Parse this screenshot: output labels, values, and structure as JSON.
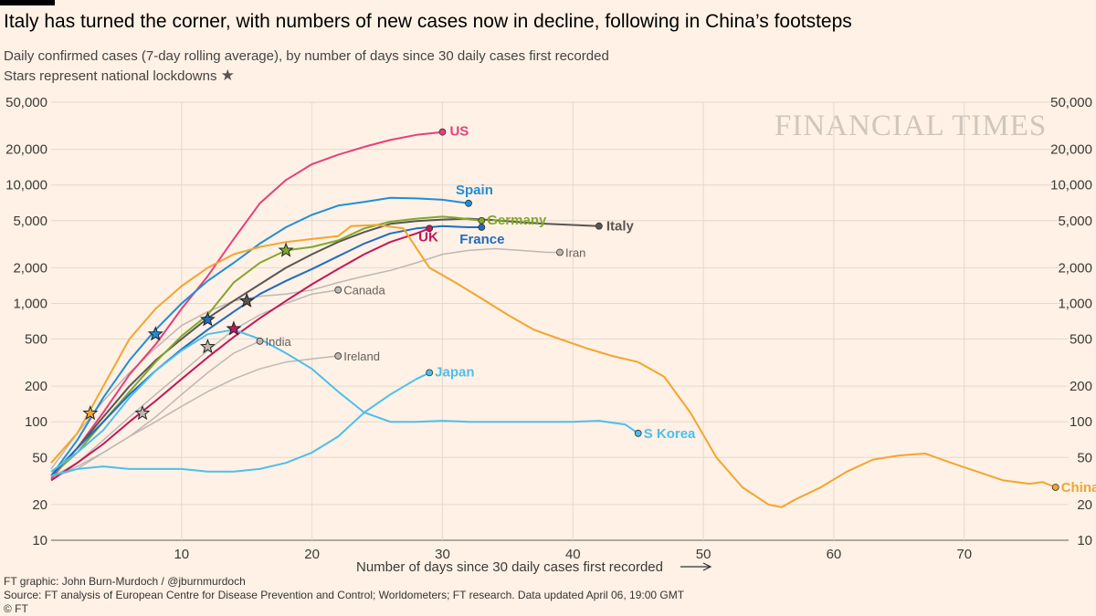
{
  "title": "Italy has turned the corner, with numbers of new cases now in decline, following in China’s footsteps",
  "subtitle": "Daily confirmed cases (7-day rolling average), by number of days since 30 daily cases first recorded",
  "subtitle2": "Stars represent national lockdowns",
  "star_glyph": "★",
  "watermark": "FINANCIAL TIMES",
  "footer": {
    "credit": "FT graphic: John Burn-Murdoch / @jburnmurdoch",
    "source": "Source: FT analysis of European Centre for Disease Prevention and Control; Worldometers; FT research. Data updated April 06, 19:00 GMT",
    "copyright": "© FT"
  },
  "chart_data": {
    "type": "line",
    "y_scale": "log",
    "title": "Italy has turned the corner, with numbers of new cases now in decline, following in China’s footsteps",
    "xlabel": "Number of days since 30 daily cases first recorded",
    "ylabel": "Daily confirmed cases (7-day rolling average)",
    "xlim": [
      0,
      78
    ],
    "ylim": [
      10,
      50000
    ],
    "x_ticks": [
      10,
      20,
      30,
      40,
      50,
      60,
      70
    ],
    "y_ticks": [
      10,
      20,
      50,
      100,
      200,
      500,
      1000,
      2000,
      5000,
      10000,
      20000,
      50000
    ],
    "y_tick_labels": [
      "10",
      "20",
      "50",
      "100",
      "200",
      "500",
      "1,000",
      "2,000",
      "5,000",
      "10,000",
      "20,000",
      "50,000"
    ],
    "series": [
      {
        "name": "US",
        "label": "US",
        "color": "#e5407a",
        "highlight": true,
        "x": [
          0,
          2,
          4,
          6,
          8,
          10,
          12,
          14,
          16,
          18,
          20,
          22,
          24,
          26,
          28,
          30
        ],
        "y": [
          33,
          60,
          120,
          250,
          450,
          900,
          1700,
          3500,
          7000,
          11000,
          15000,
          18000,
          21000,
          24000,
          26500,
          28000
        ]
      },
      {
        "name": "Spain",
        "label": "Spain",
        "color": "#1f8ed8",
        "highlight": true,
        "x": [
          0,
          2,
          4,
          6,
          8,
          10,
          12,
          14,
          16,
          18,
          20,
          22,
          24,
          26,
          28,
          30,
          32
        ],
        "y": [
          35,
          70,
          160,
          330,
          600,
          1000,
          1550,
          2200,
          3200,
          4400,
          5600,
          6700,
          7200,
          7800,
          7700,
          7500,
          7000
        ]
      },
      {
        "name": "Italy",
        "label": "Italy",
        "color": "#5a5553",
        "highlight": true,
        "x": [
          0,
          2,
          4,
          6,
          8,
          10,
          12,
          14,
          16,
          18,
          20,
          22,
          24,
          26,
          28,
          30,
          32,
          34,
          36,
          38,
          40,
          42
        ],
        "y": [
          35,
          60,
          110,
          200,
          330,
          500,
          750,
          1050,
          1450,
          2000,
          2600,
          3300,
          4000,
          4700,
          4950,
          5100,
          5200,
          5050,
          4850,
          4700,
          4600,
          4500
        ]
      },
      {
        "name": "Germany",
        "label": "Germany",
        "color": "#7fa92b",
        "highlight": true,
        "x": [
          0,
          2,
          4,
          6,
          8,
          10,
          12,
          14,
          16,
          18,
          20,
          22,
          24,
          26,
          28,
          30,
          31,
          33
        ],
        "y": [
          35,
          55,
          100,
          180,
          320,
          530,
          800,
          1500,
          2200,
          2800,
          3000,
          3400,
          4300,
          4900,
          5200,
          5400,
          5300,
          5000
        ]
      },
      {
        "name": "France",
        "label": "France",
        "color": "#1f6cc1",
        "highlight": true,
        "x": [
          0,
          2,
          4,
          6,
          8,
          10,
          12,
          14,
          16,
          18,
          20,
          22,
          24,
          26,
          28,
          30,
          32,
          33
        ],
        "y": [
          35,
          60,
          100,
          170,
          270,
          410,
          600,
          850,
          1200,
          1550,
          1950,
          2500,
          3200,
          3900,
          4300,
          4500,
          4400,
          4400
        ]
      },
      {
        "name": "UK",
        "label": "UK",
        "color": "#c2185b",
        "highlight": true,
        "x": [
          0,
          2,
          4,
          6,
          8,
          10,
          12,
          14,
          16,
          18,
          20,
          22,
          24,
          26,
          28,
          29
        ],
        "y": [
          32,
          45,
          65,
          100,
          150,
          230,
          350,
          520,
          750,
          1050,
          1450,
          1950,
          2600,
          3300,
          3900,
          4300
        ]
      },
      {
        "name": "China",
        "label": "China",
        "color": "#f2a530",
        "highlight": true,
        "x": [
          0,
          2,
          4,
          6,
          8,
          10,
          12,
          14,
          16,
          18,
          20,
          22,
          23,
          25,
          27,
          29,
          31,
          33,
          35,
          37,
          39,
          41,
          43,
          45,
          47,
          49,
          51,
          53,
          55,
          56,
          57,
          59,
          61,
          63,
          65,
          67,
          69,
          71,
          73,
          75,
          76,
          77
        ],
        "y": [
          45,
          80,
          200,
          500,
          900,
          1400,
          2000,
          2600,
          3000,
          3300,
          3500,
          3700,
          4500,
          4600,
          4300,
          2000,
          1500,
          1100,
          800,
          600,
          500,
          420,
          360,
          320,
          240,
          120,
          50,
          28,
          20,
          19,
          22,
          28,
          38,
          48,
          52,
          54,
          45,
          38,
          32,
          30,
          31,
          28
        ]
      },
      {
        "name": "S Korea",
        "label": "S Korea",
        "color": "#4dbfec",
        "highlight": true,
        "x": [
          0,
          2,
          4,
          6,
          8,
          10,
          12,
          14,
          16,
          18,
          20,
          22,
          24,
          26,
          28,
          30,
          32,
          34,
          36,
          38,
          40,
          42,
          44,
          45
        ],
        "y": [
          38,
          55,
          85,
          160,
          270,
          400,
          550,
          600,
          500,
          380,
          280,
          180,
          120,
          100,
          100,
          102,
          100,
          100,
          100,
          100,
          100,
          102,
          95,
          80
        ]
      },
      {
        "name": "Japan",
        "label": "Japan",
        "color": "#4dbfec",
        "highlight": true,
        "x": [
          0,
          2,
          4,
          6,
          8,
          10,
          12,
          14,
          16,
          18,
          20,
          22,
          24,
          26,
          28,
          29
        ],
        "y": [
          35,
          40,
          42,
          40,
          40,
          40,
          38,
          38,
          40,
          45,
          55,
          75,
          120,
          170,
          230,
          260
        ]
      },
      {
        "name": "Iran",
        "label": "Iran",
        "color": "#bdb8b4",
        "highlight": false,
        "x": [
          0,
          2,
          4,
          6,
          8,
          10,
          12,
          14,
          16,
          18,
          20,
          22,
          24,
          26,
          28,
          30,
          32,
          34,
          36,
          38,
          39
        ],
        "y": [
          40,
          80,
          150,
          260,
          420,
          650,
          850,
          1050,
          1150,
          1200,
          1300,
          1500,
          1700,
          1900,
          2200,
          2600,
          2800,
          2900,
          2800,
          2700,
          2700
        ]
      },
      {
        "name": "Canada",
        "label": "Canada",
        "color": "#bdb8b4",
        "highlight": false,
        "x": [
          0,
          2,
          4,
          6,
          8,
          10,
          12,
          14,
          16,
          18,
          20,
          22
        ],
        "y": [
          34,
          45,
          70,
          110,
          170,
          260,
          400,
          600,
          800,
          1000,
          1200,
          1300
        ]
      },
      {
        "name": "India",
        "label": "India",
        "color": "#bdb8b4",
        "highlight": false,
        "x": [
          0,
          2,
          4,
          6,
          8,
          10,
          12,
          14,
          16
        ],
        "y": [
          34,
          40,
          55,
          75,
          110,
          170,
          260,
          380,
          480
        ]
      },
      {
        "name": "Ireland",
        "label": "Ireland",
        "color": "#bdb8b4",
        "highlight": false,
        "x": [
          0,
          2,
          4,
          6,
          8,
          10,
          12,
          14,
          16,
          18,
          20,
          22
        ],
        "y": [
          34,
          42,
          55,
          75,
          100,
          135,
          180,
          230,
          280,
          320,
          340,
          360
        ]
      }
    ],
    "lockdowns": [
      {
        "x": 3,
        "y": 118,
        "color": "#f2a530"
      },
      {
        "x": 7,
        "y": 118,
        "color": "#bdb8b4"
      },
      {
        "x": 8,
        "y": 550,
        "color": "#1f8ed8"
      },
      {
        "x": 12,
        "y": 730,
        "color": "#1f6cc1"
      },
      {
        "x": 12,
        "y": 430,
        "color": "#bdb8b4"
      },
      {
        "x": 14,
        "y": 610,
        "color": "#c2185b"
      },
      {
        "x": 15,
        "y": 1050,
        "color": "#5a5553"
      },
      {
        "x": 18,
        "y": 2800,
        "color": "#7fa92b"
      }
    ]
  }
}
